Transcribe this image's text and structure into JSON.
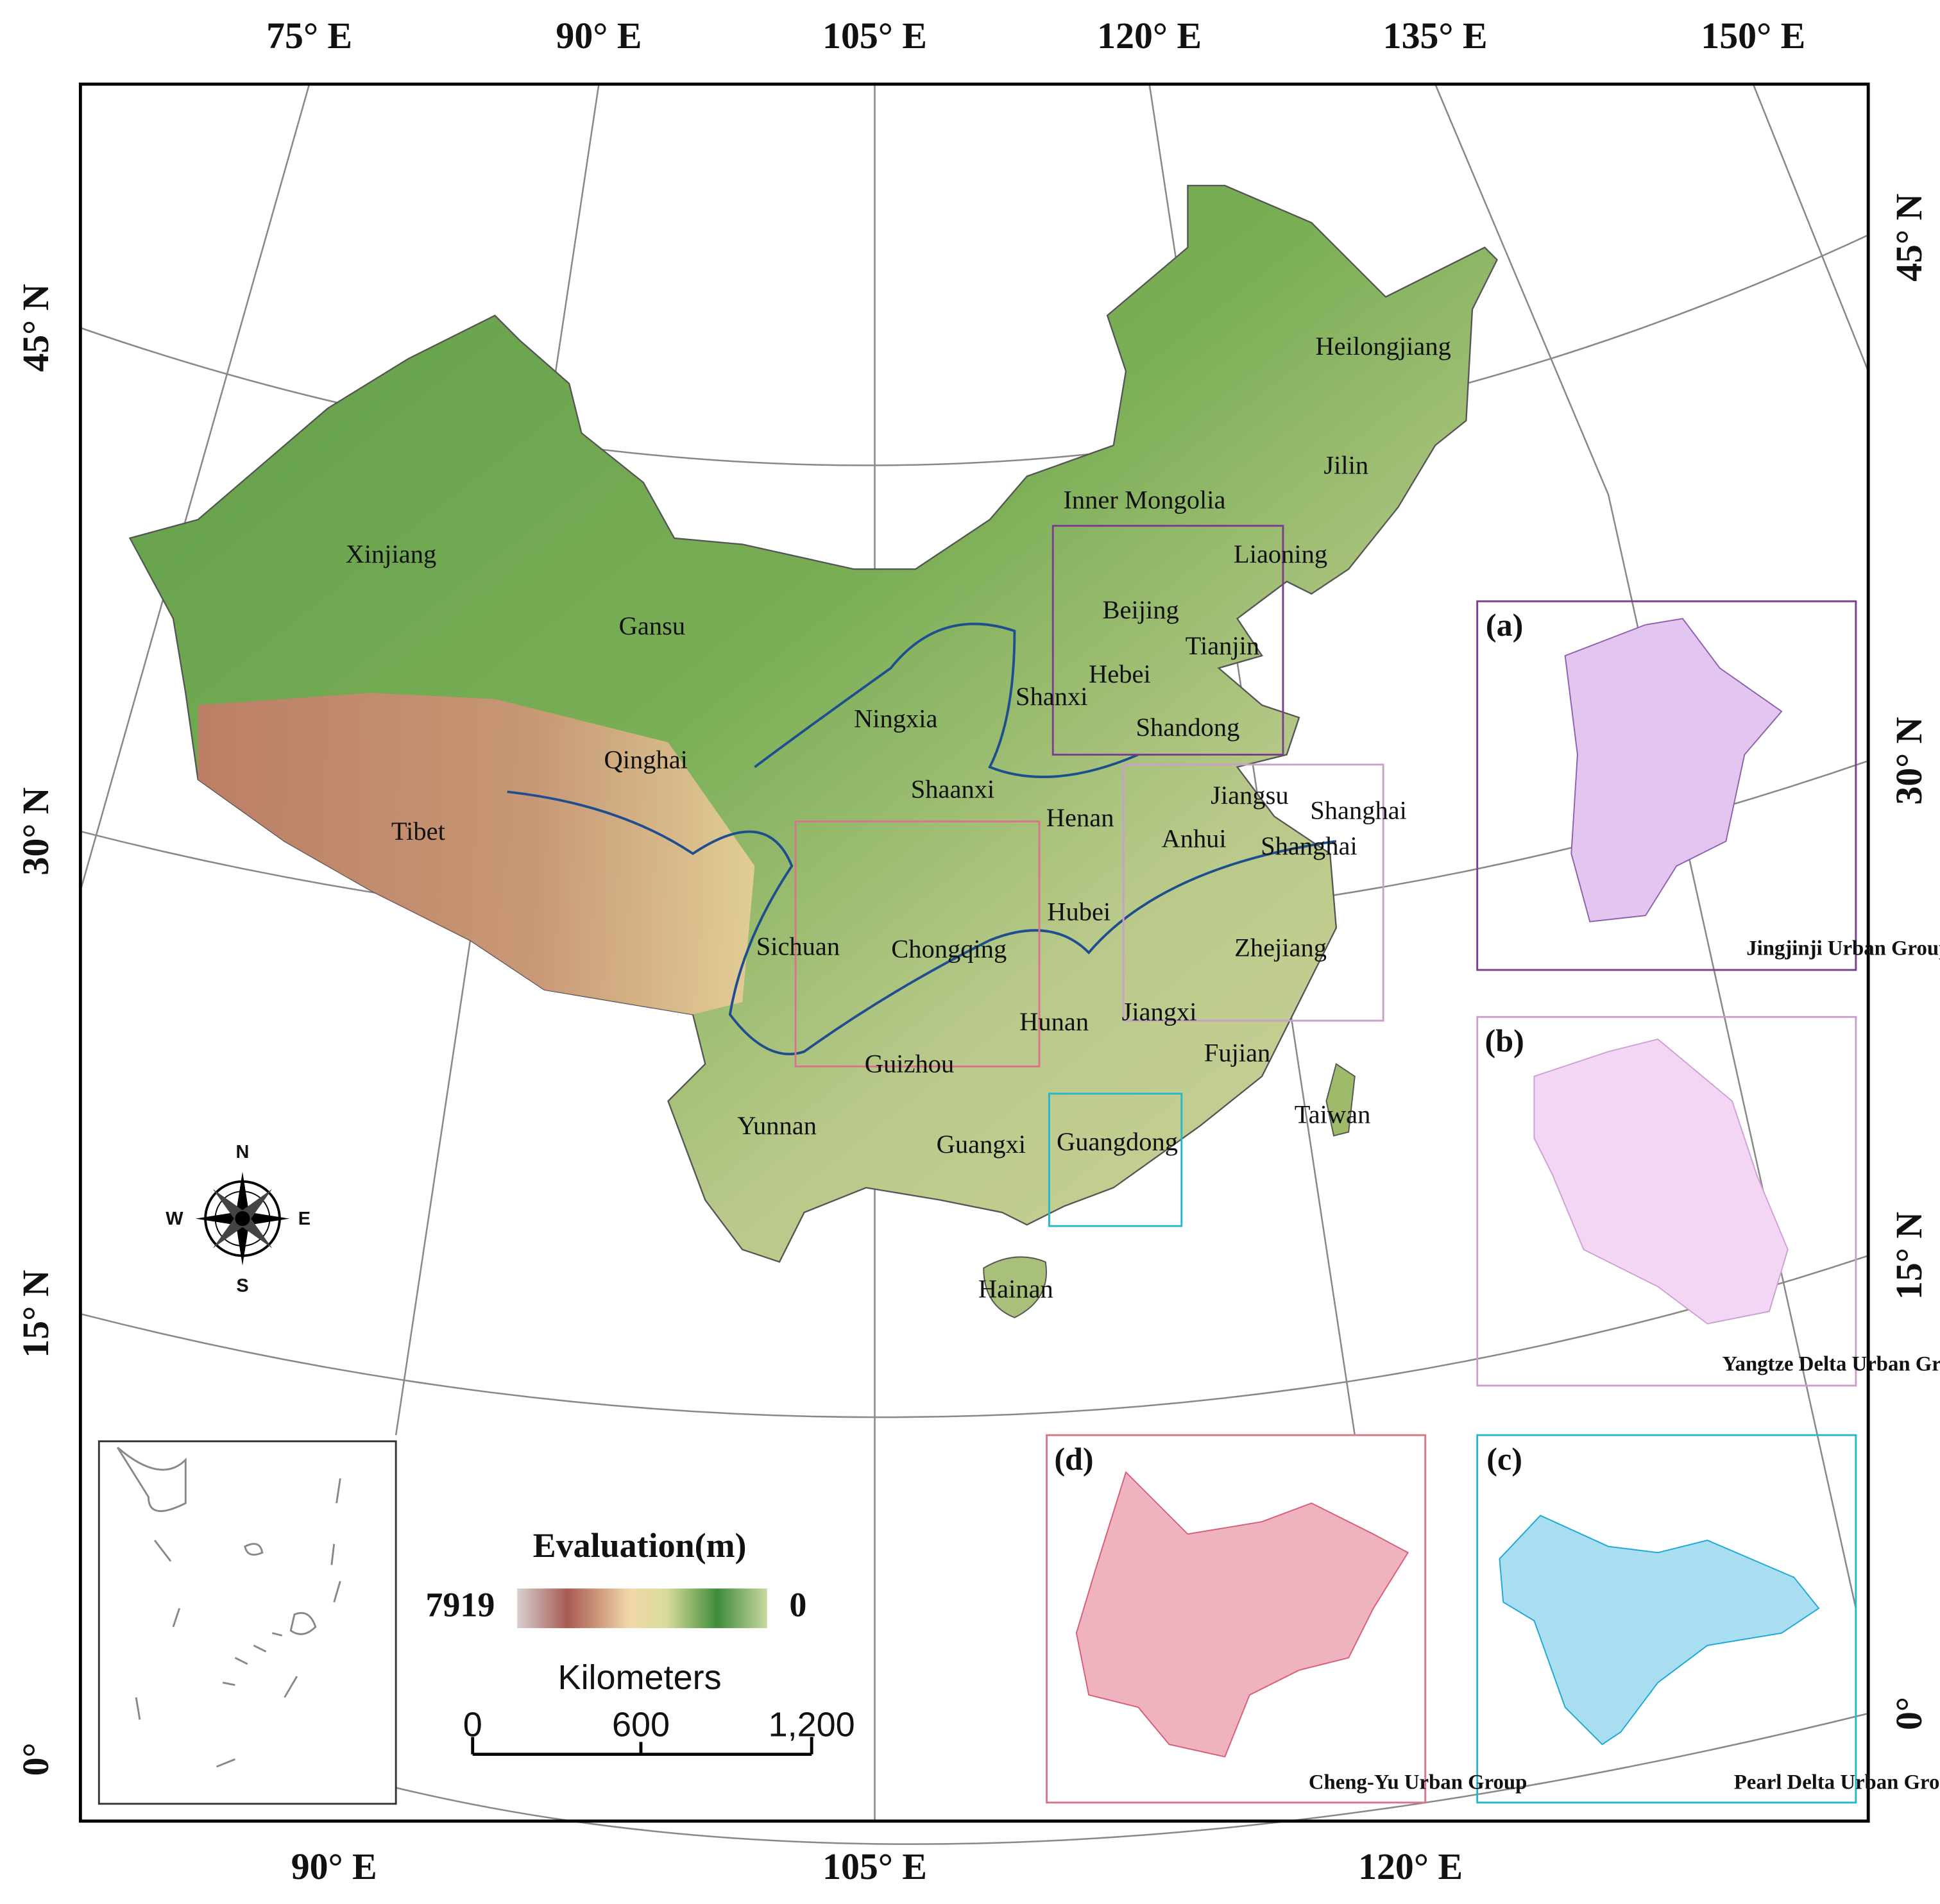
{
  "graticule": {
    "top": [
      "75° E",
      "90° E",
      "105° E",
      "120° E",
      "135° E",
      "150° E"
    ],
    "bottom": [
      "90° E",
      "105° E",
      "120° E"
    ],
    "left": [
      "45° N",
      "30° N",
      "15° N",
      "0°"
    ],
    "right": [
      "45° N",
      "30° N",
      "15° N",
      "0°"
    ]
  },
  "provinces": [
    "Heilongjiang",
    "Jilin",
    "Inner Mongolia",
    "Liaoning",
    "Xinjiang",
    "Beijing",
    "Tianjin",
    "Gansu",
    "Hebei",
    "Shanxi",
    "Ningxia",
    "Shandong",
    "Qinghai",
    "Shaanxi",
    "Henan",
    "Jiangsu",
    "Shanghai",
    "Shanghai",
    "Anhui",
    "Tibet",
    "Hubei",
    "Sichuan",
    "Chongqing",
    "Zhejiang",
    "Hunan",
    "Jiangxi",
    "Fujian",
    "Guizhou",
    "Taiwan",
    "Yunnan",
    "Guangxi",
    "Guangdong",
    "Hainan"
  ],
  "compass": [
    "N",
    "E",
    "S",
    "W"
  ],
  "legend": {
    "title": "Evaluation(m)",
    "high": "7919",
    "low": "0"
  },
  "scale_bar": {
    "title": "Kilometers",
    "ticks": [
      "0",
      "600",
      "1,200"
    ]
  },
  "insets": [
    {
      "tag": "(a)",
      "title": "Jingjinji Urban Group"
    },
    {
      "tag": "(b)",
      "title": "Yangtze Delta Urban Group"
    },
    {
      "tag": "(c)",
      "title": "Pearl Delta Urban Group"
    },
    {
      "tag": "(d)",
      "title": "Cheng-Yu Urban Group"
    }
  ]
}
